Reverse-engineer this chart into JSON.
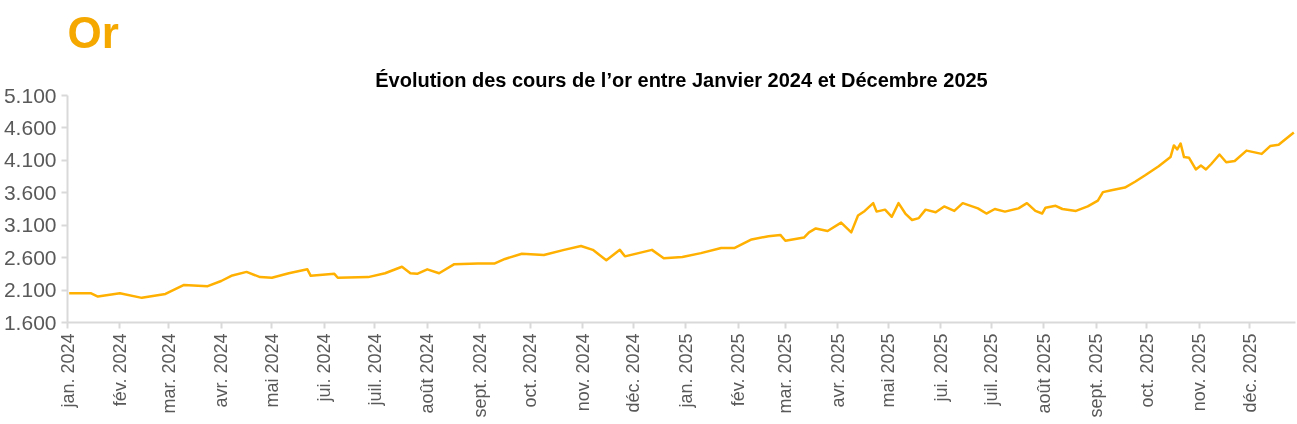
{
  "chart_data": {
    "type": "line",
    "title": "Évolution des cours de l’or entre Janvier 2024 et Décembre 2025",
    "annotations": [
      "Or"
    ],
    "x": [
      "2024-01-02",
      "2024-01-15",
      "2024-01-19",
      "2024-02-01",
      "2024-02-14",
      "2024-02-28",
      "2024-03-10",
      "2024-03-24",
      "2024-04-01",
      "2024-04-07",
      "2024-04-16",
      "2024-04-24",
      "2024-05-01",
      "2024-05-11",
      "2024-05-22",
      "2024-05-24",
      "2024-06-07",
      "2024-06-09",
      "2024-06-27",
      "2024-07-07",
      "2024-07-17",
      "2024-07-22",
      "2024-07-26",
      "2024-08-01",
      "2024-08-08",
      "2024-08-17",
      "2024-08-31",
      "2024-09-10",
      "2024-09-16",
      "2024-09-26",
      "2024-10-09",
      "2024-10-21",
      "2024-10-31",
      "2024-11-07",
      "2024-11-15",
      "2024-11-23",
      "2024-11-26",
      "2024-12-12",
      "2024-12-19",
      "2024-12-30",
      "2025-01-10",
      "2025-01-22",
      "2025-01-30",
      "2025-02-09",
      "2025-02-19",
      "2025-02-26",
      "2025-03-01",
      "2025-03-12",
      "2025-03-15",
      "2025-03-19",
      "2025-03-26",
      "2025-04-03",
      "2025-04-09",
      "2025-04-13",
      "2025-04-17",
      "2025-04-22",
      "2025-04-24",
      "2025-04-29",
      "2025-05-03",
      "2025-05-07",
      "2025-05-11",
      "2025-05-15",
      "2025-05-19",
      "2025-05-23",
      "2025-05-29",
      "2025-06-03",
      "2025-06-09",
      "2025-06-14",
      "2025-06-23",
      "2025-06-28",
      "2025-07-03",
      "2025-07-09",
      "2025-07-17",
      "2025-07-22",
      "2025-07-27",
      "2025-07-31",
      "2025-08-02",
      "2025-08-08",
      "2025-08-12",
      "2025-08-20",
      "2025-08-27",
      "2025-09-02",
      "2025-09-05",
      "2025-09-10",
      "2025-09-18",
      "2025-09-24",
      "2025-09-30",
      "2025-10-08",
      "2025-10-15",
      "2025-10-17",
      "2025-10-19",
      "2025-10-21",
      "2025-10-23",
      "2025-10-26",
      "2025-10-30",
      "2025-11-02",
      "2025-11-05",
      "2025-11-08",
      "2025-11-13",
      "2025-11-17",
      "2025-11-22",
      "2025-11-29",
      "2025-12-08",
      "2025-12-13",
      "2025-12-18",
      "2025-12-27"
    ],
    "series": [
      {
        "color": "#ffb000",
        "values": [
          2050,
          2050,
          2000,
          2050,
          1980,
          2040,
          2180,
          2160,
          2240,
          2320,
          2380,
          2300,
          2290,
          2360,
          2420,
          2320,
          2350,
          2290,
          2300,
          2360,
          2460,
          2360,
          2350,
          2420,
          2360,
          2500,
          2510,
          2510,
          2580,
          2660,
          2640,
          2720,
          2780,
          2720,
          2560,
          2720,
          2620,
          2720,
          2590,
          2610,
          2670,
          2750,
          2750,
          2880,
          2930,
          2950,
          2860,
          2910,
          2990,
          3050,
          3010,
          3140,
          2990,
          3250,
          3320,
          3440,
          3310,
          3340,
          3230,
          3440,
          3280,
          3180,
          3210,
          3340,
          3300,
          3390,
          3320,
          3440,
          3360,
          3280,
          3350,
          3310,
          3360,
          3440,
          3320,
          3280,
          3370,
          3400,
          3350,
          3320,
          3390,
          3480,
          3610,
          3640,
          3680,
          3770,
          3870,
          4010,
          4150,
          4330,
          4270,
          4360,
          4150,
          4140,
          3960,
          4020,
          3960,
          4040,
          4190,
          4070,
          4090,
          4250,
          4200,
          4320,
          4340,
          4530
        ]
      }
    ],
    "xlim": [
      "2024-01-01",
      "2025-12-28"
    ],
    "xticks": [
      {
        "value": "2024-01-01",
        "label": "jan. 2024"
      },
      {
        "value": "2024-02-01",
        "label": "fév. 2024"
      },
      {
        "value": "2024-03-01",
        "label": "mar. 2024"
      },
      {
        "value": "2024-04-01",
        "label": "avr. 2024"
      },
      {
        "value": "2024-05-01",
        "label": "mai 2024"
      },
      {
        "value": "2024-06-01",
        "label": "jui. 2024"
      },
      {
        "value": "2024-07-01",
        "label": "juil. 2024"
      },
      {
        "value": "2024-08-01",
        "label": "août 2024"
      },
      {
        "value": "2024-09-01",
        "label": "sept. 2024"
      },
      {
        "value": "2024-10-01",
        "label": "oct. 2024"
      },
      {
        "value": "2024-11-01",
        "label": "nov. 2024"
      },
      {
        "value": "2024-12-01",
        "label": "déc. 2024"
      },
      {
        "value": "2025-01-01",
        "label": "jan. 2025"
      },
      {
        "value": "2025-02-01",
        "label": "fév. 2025"
      },
      {
        "value": "2025-03-01",
        "label": "mar. 2025"
      },
      {
        "value": "2025-04-01",
        "label": "avr. 2025"
      },
      {
        "value": "2025-05-01",
        "label": "mai 2025"
      },
      {
        "value": "2025-06-01",
        "label": "jui. 2025"
      },
      {
        "value": "2025-07-01",
        "label": "juil. 2025"
      },
      {
        "value": "2025-08-01",
        "label": "août 2025"
      },
      {
        "value": "2025-09-01",
        "label": "sept. 2025"
      },
      {
        "value": "2025-10-01",
        "label": "oct. 2025"
      },
      {
        "value": "2025-11-01",
        "label": "nov. 2025"
      },
      {
        "value": "2025-12-01",
        "label": "déc. 2025"
      }
    ],
    "ylim": [
      1600,
      5100
    ],
    "yticks": [
      {
        "value": 1600,
        "label": "1.600"
      },
      {
        "value": 2100,
        "label": "2.100"
      },
      {
        "value": 2600,
        "label": "2.600"
      },
      {
        "value": 3100,
        "label": "3.100"
      },
      {
        "value": 3600,
        "label": "3.600"
      },
      {
        "value": 4100,
        "label": "4.100"
      },
      {
        "value": 4600,
        "label": "4.600"
      },
      {
        "value": 5100,
        "label": "5.100"
      }
    ],
    "line_style": "solid"
  }
}
